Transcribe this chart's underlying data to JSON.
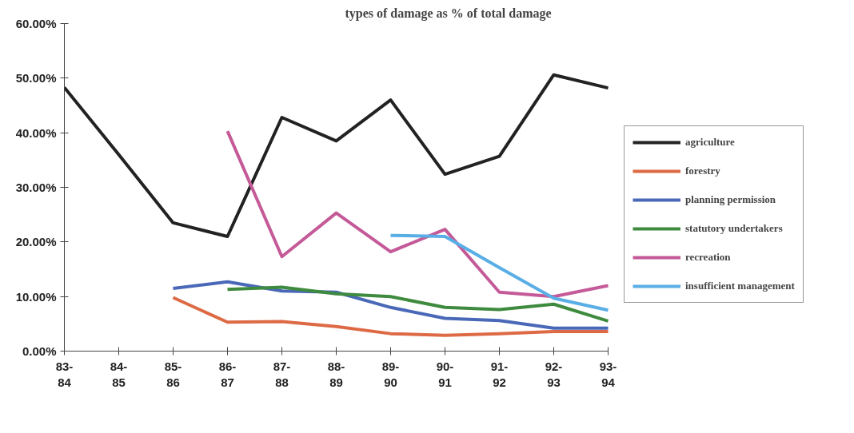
{
  "chart_data": {
    "type": "line",
    "title": "types of damage as % of total damage",
    "categories": [
      "83-84",
      "84-85",
      "85-86",
      "86-87",
      "87-88",
      "88-89",
      "89-90",
      "90-91",
      "91-92",
      "92-93",
      "93-94"
    ],
    "series": [
      {
        "name": "agriculture",
        "color": "#222222",
        "values": [
          48.3,
          36,
          23.5,
          21,
          42.8,
          38.5,
          46,
          32.4,
          35.7,
          50.6,
          48.2
        ]
      },
      {
        "name": "forestry",
        "color": "#dd6a45",
        "values": [
          null,
          null,
          9.8,
          5.3,
          5.4,
          4.5,
          3.2,
          2.9,
          3.2,
          3.6,
          3.6
        ]
      },
      {
        "name": "planning permission",
        "color": "#4a68b8",
        "values": [
          null,
          null,
          11.5,
          12.7,
          11,
          10.8,
          8,
          6,
          5.6,
          4.2,
          4.2
        ]
      },
      {
        "name": "statutory undertakers",
        "color": "#3e8a3e",
        "values": [
          null,
          null,
          null,
          11.3,
          11.7,
          10.5,
          10,
          8,
          7.6,
          8.6,
          5.5
        ]
      },
      {
        "name": "recreation",
        "color": "#c45a98",
        "values": [
          null,
          null,
          null,
          40.3,
          17.3,
          25.3,
          18.2,
          22.3,
          10.8,
          10,
          12
        ]
      },
      {
        "name": "insufficient management",
        "color": "#5aaee6",
        "values": [
          null,
          null,
          null,
          null,
          null,
          null,
          21.2,
          21,
          15.3,
          9.7,
          7.5
        ]
      }
    ],
    "ylim": [
      0,
      60
    ],
    "yticks": [
      {
        "value": 0,
        "label": "0.00%"
      },
      {
        "value": 10,
        "label": "10.00%"
      },
      {
        "value": 20,
        "label": "20.00%"
      },
      {
        "value": 30,
        "label": "30.00%"
      },
      {
        "value": 40,
        "label": "40.00%"
      },
      {
        "value": 50,
        "label": "50.00%"
      },
      {
        "value": 60,
        "label": "60.00%"
      }
    ],
    "grid": false,
    "legend": "right"
  }
}
